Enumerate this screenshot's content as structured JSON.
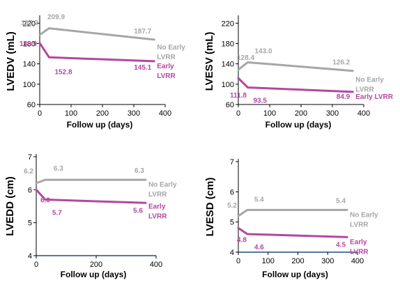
{
  "colors": {
    "no_early": "#a6a6a6",
    "early": "#b3479f",
    "axis": "#000000",
    "baseline_blue": "#1f4e79"
  },
  "chart_data": [
    {
      "type": "line",
      "ylabel": "LVEDV (mL)",
      "xlabel": "Follow up (days)",
      "xlim": [
        0,
        400
      ],
      "ylim": [
        60,
        230
      ],
      "xticks": [
        0,
        100,
        200,
        300,
        400
      ],
      "yticks": [
        60,
        100,
        140,
        180,
        220
      ],
      "series": [
        {
          "name": "No Early LVRR",
          "label_lines": [
            "No Early",
            "LVRR"
          ],
          "color": "#a6a6a6",
          "points": [
            [
              0,
              197.2
            ],
            [
              30,
              209.9
            ],
            [
              365,
              187.7
            ]
          ],
          "labels": [
            "197.2",
            "209.9",
            "187.7"
          ]
        },
        {
          "name": "Early LVRR",
          "label_lines": [
            "Early",
            "LVRR"
          ],
          "color": "#b3479f",
          "points": [
            [
              0,
              180.9
            ],
            [
              30,
              152.8
            ],
            [
              365,
              145.1
            ]
          ],
          "labels": [
            "180.9",
            "152.8",
            "145.1"
          ]
        }
      ]
    },
    {
      "type": "line",
      "ylabel": "LVESV (mL)",
      "xlabel": "Follow up (days)",
      "xlim": [
        0,
        400
      ],
      "ylim": [
        60,
        230
      ],
      "xticks": [
        0,
        100,
        200,
        300,
        400
      ],
      "yticks": [
        60,
        100,
        140,
        180,
        220
      ],
      "series": [
        {
          "name": "No Early LVRR",
          "label_lines": [
            "No Early",
            "LVRR"
          ],
          "color": "#a6a6a6",
          "points": [
            [
              0,
              128.4
            ],
            [
              30,
              143.0
            ],
            [
              365,
              126.2
            ]
          ],
          "labels": [
            "128.4",
            "143.0",
            "126.2"
          ]
        },
        {
          "name": "Early LVRR",
          "label_lines": [
            "Early LVRR"
          ],
          "color": "#b3479f",
          "points": [
            [
              0,
              111.8
            ],
            [
              30,
              93.5
            ],
            [
              365,
              84.9
            ]
          ],
          "labels": [
            "111.8",
            "93.5",
            "84.9"
          ]
        }
      ]
    },
    {
      "type": "line",
      "ylabel": "LVEDD (cm)",
      "xlabel": "Follow up (days)",
      "xlim": [
        0,
        400
      ],
      "ylim": [
        4,
        7
      ],
      "xticks": [
        0,
        200,
        400
      ],
      "yticks": [
        4,
        5,
        6,
        7
      ],
      "series": [
        {
          "name": "No Early LVRR",
          "label_lines": [
            "No Early",
            "LVRR"
          ],
          "color": "#a6a6a6",
          "points": [
            [
              0,
              6.2
            ],
            [
              30,
              6.3
            ],
            [
              365,
              6.3
            ]
          ],
          "labels": [
            "6.2",
            "6.3",
            "6.3"
          ]
        },
        {
          "name": "Early LVRR",
          "label_lines": [
            "Early",
            "LVRR"
          ],
          "color": "#b3479f",
          "points": [
            [
              0,
              6.0
            ],
            [
              30,
              5.7
            ],
            [
              365,
              5.6
            ]
          ],
          "labels": [
            "6.0",
            "5.7",
            "5.6"
          ]
        }
      ]
    },
    {
      "type": "line",
      "ylabel": "LVESD (cm)",
      "xlabel": "Follow up (days)",
      "xlim": [
        0,
        400
      ],
      "ylim": [
        4,
        7
      ],
      "xticks": [
        0,
        100,
        200,
        300,
        400
      ],
      "yticks": [
        4,
        5,
        6,
        7
      ],
      "series": [
        {
          "name": "No Early LVRR",
          "label_lines": [
            "No Early",
            "LVRR"
          ],
          "color": "#a6a6a6",
          "points": [
            [
              0,
              5.2
            ],
            [
              30,
              5.4
            ],
            [
              365,
              5.4
            ]
          ],
          "labels": [
            "5.2",
            "5.4",
            "5.4"
          ]
        },
        {
          "name": "Early LVRR",
          "label_lines": [
            "Early",
            "LVRR"
          ],
          "color": "#b3479f",
          "points": [
            [
              0,
              4.8
            ],
            [
              30,
              4.6
            ],
            [
              365,
              4.5
            ]
          ],
          "labels": [
            "4.8",
            "4.6",
            "4.5"
          ]
        }
      ]
    }
  ]
}
